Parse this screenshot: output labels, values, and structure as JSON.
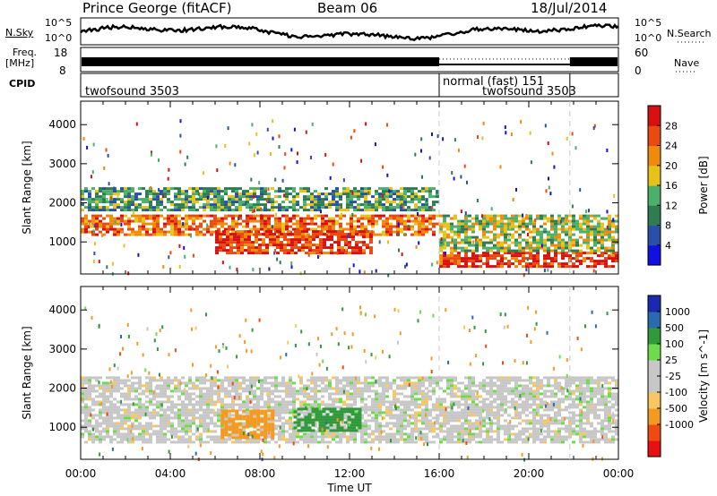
{
  "header": {
    "station": "Prince George (fitACF)",
    "beam": "Beam 06",
    "date": "18/Jul/2014"
  },
  "side_labels": {
    "nsky": "N.Sky",
    "freq": "Freq.",
    "freq_unit": "[MHz]",
    "cpid": "CPID",
    "nsearch": "N.Search",
    "nave": "Nave"
  },
  "strip_ticks": {
    "nsky_top": "10^5",
    "nsky_bottom": "10^0",
    "freq_top": "18",
    "freq_bottom": "8",
    "nsearch_top": "10^5",
    "nsearch_bottom": "10^0",
    "nave_top": "60",
    "nave_bottom": "0"
  },
  "cpid_segments": [
    {
      "label": "twofsound 3503",
      "start": "00:00",
      "end": "16:00"
    },
    {
      "label": "normal (fast) 151",
      "start": "16:00",
      "end": "21:50"
    },
    {
      "label": "twofsound 3503",
      "start": "16:00",
      "end": "21:50"
    },
    {
      "label": "",
      "start": "21:50",
      "end": "24:00"
    }
  ],
  "colors": {
    "power_scale": [
      "#1010e0",
      "#2a4fa8",
      "#2e7d52",
      "#4caf6a",
      "#e6c21a",
      "#f08a0a",
      "#e84a10",
      "#d81010"
    ],
    "velocity_scale": [
      "#e81010",
      "#f04a10",
      "#f59a20",
      "#f7c760",
      "#c7c7c7",
      "#c7c7c7",
      "#6edc4a",
      "#2e9a3a",
      "#2a6ab0",
      "#1a2ab0"
    ],
    "strip_fill": "#000000",
    "dashed_line": "#c8c8c8"
  },
  "chart_data": [
    {
      "type": "heatmap",
      "title": "",
      "xlabel": "",
      "ylabel": "Slant Range [km]",
      "xlim": [
        "00:00",
        "24:00"
      ],
      "ylim": [
        180,
        4600
      ],
      "yticks": [
        1000,
        2000,
        3000,
        4000
      ],
      "colorbar_label": "Power [dB]",
      "colorbar_ticks": [
        4,
        8,
        12,
        16,
        20,
        24,
        28
      ],
      "colorbar_range": [
        0,
        32
      ],
      "regions": [
        {
          "from": "00:00",
          "to": "16:00",
          "range_km": [
            1200,
            1700
          ],
          "power_db": 24
        },
        {
          "from": "00:00",
          "to": "16:00",
          "range_km": [
            1800,
            2400
          ],
          "power_db": 12
        },
        {
          "from": "06:00",
          "to": "13:00",
          "range_km": [
            700,
            1300
          ],
          "power_db": 28
        },
        {
          "from": "16:00",
          "to": "24:00",
          "range_km": [
            350,
            750
          ],
          "power_db": 28
        },
        {
          "from": "16:00",
          "to": "24:00",
          "range_km": [
            800,
            1700
          ],
          "power_db": 16
        }
      ]
    },
    {
      "type": "heatmap",
      "title": "",
      "xlabel": "Time UT",
      "ylabel": "Slant Range [km]",
      "xlim": [
        "00:00",
        "24:00"
      ],
      "xticks": [
        "00:00",
        "04:00",
        "08:00",
        "12:00",
        "16:00",
        "20:00",
        "00:00"
      ],
      "ylim": [
        180,
        4600
      ],
      "yticks": [
        1000,
        2000,
        3000,
        4000
      ],
      "colorbar_label": "Velocity [m s^-1]",
      "colorbar_ticks": [
        1000,
        500,
        100,
        25,
        -25,
        -100,
        -500,
        -1000
      ],
      "regions": [
        {
          "from": "00:00",
          "to": "24:00",
          "range_km": [
            600,
            2300
          ],
          "velocity_ms": 0
        },
        {
          "from": "06:15",
          "to": "08:30",
          "range_km": [
            700,
            1450
          ],
          "velocity_ms": -150
        },
        {
          "from": "09:30",
          "to": "12:30",
          "range_km": [
            900,
            1500
          ],
          "velocity_ms": 150
        }
      ]
    }
  ]
}
